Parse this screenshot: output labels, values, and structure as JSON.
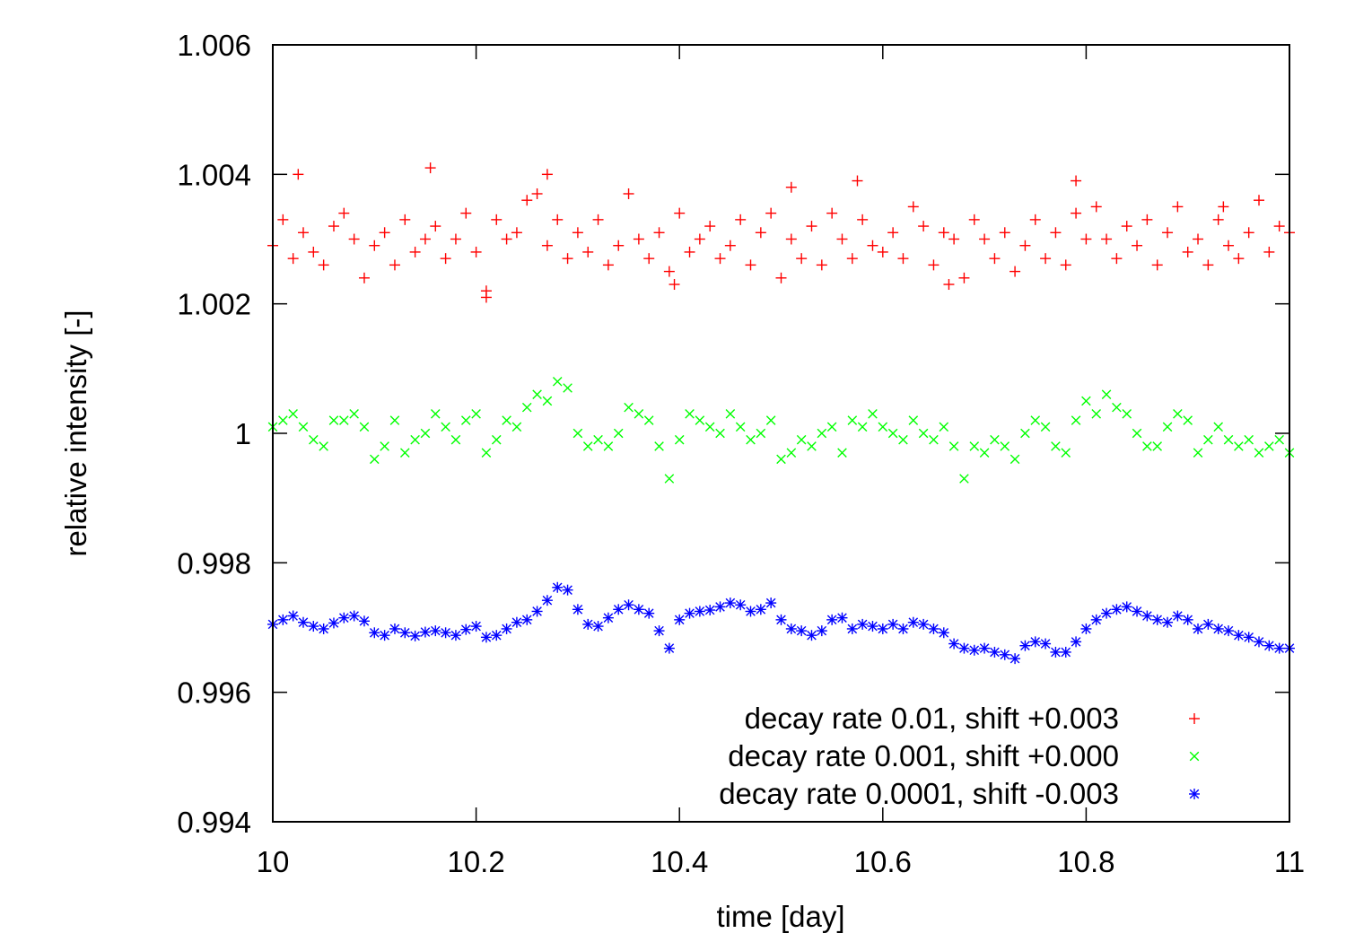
{
  "chart_data": {
    "type": "scatter",
    "title": "",
    "xlabel": "time [day]",
    "ylabel": "relative intensity [-]",
    "xlim": [
      10,
      11
    ],
    "ylim": [
      0.994,
      1.006
    ],
    "xticks": [
      10,
      10.2,
      10.4,
      10.6,
      10.8,
      11
    ],
    "xtick_labels": [
      "10",
      "10.2",
      "10.4",
      "10.6",
      "10.8",
      "11"
    ],
    "yticks": [
      0.994,
      0.996,
      0.998,
      1,
      1.002,
      1.004,
      1.006
    ],
    "ytick_labels": [
      "0.994",
      "0.996",
      "0.998",
      "1",
      "1.002",
      "1.004",
      "1.006"
    ],
    "grid": false,
    "legend_position": "bottom-right",
    "series": [
      {
        "name": "decay rate 0.01, shift +0.003",
        "marker": "plus",
        "color": "#ff0000",
        "x": [
          10.0,
          10.01,
          10.02,
          10.03,
          10.04,
          10.05,
          10.06,
          10.07,
          10.08,
          10.09,
          10.1,
          10.11,
          10.12,
          10.13,
          10.14,
          10.15,
          10.16,
          10.17,
          10.18,
          10.19,
          10.2,
          10.21,
          10.22,
          10.23,
          10.24,
          10.25,
          10.26,
          10.27,
          10.28,
          10.29,
          10.3,
          10.31,
          10.32,
          10.33,
          10.34,
          10.35,
          10.36,
          10.37,
          10.38,
          10.39,
          10.4,
          10.41,
          10.42,
          10.43,
          10.44,
          10.45,
          10.46,
          10.47,
          10.48,
          10.49,
          10.5,
          10.51,
          10.52,
          10.53,
          10.54,
          10.55,
          10.56,
          10.57,
          10.58,
          10.59,
          10.6,
          10.61,
          10.62,
          10.63,
          10.64,
          10.65,
          10.66,
          10.67,
          10.68,
          10.69,
          10.7,
          10.71,
          10.72,
          10.73,
          10.74,
          10.75,
          10.76,
          10.77,
          10.78,
          10.79,
          10.8,
          10.81,
          10.82,
          10.83,
          10.84,
          10.85,
          10.86,
          10.87,
          10.88,
          10.89,
          10.9,
          10.91,
          10.92,
          10.93,
          10.94,
          10.95,
          10.96,
          10.97,
          10.98,
          10.99,
          11.0,
          10.025,
          10.155,
          10.27,
          10.21,
          10.51,
          10.575,
          10.79,
          10.395,
          10.665,
          10.935
        ],
        "y": [
          1.0029,
          1.0033,
          1.0027,
          1.0031,
          1.0028,
          1.0026,
          1.0032,
          1.0034,
          1.003,
          1.0024,
          1.0029,
          1.0031,
          1.0026,
          1.0033,
          1.0028,
          1.003,
          1.0032,
          1.0027,
          1.003,
          1.0034,
          1.0028,
          1.0022,
          1.0033,
          1.003,
          1.0031,
          1.0036,
          1.0037,
          1.0029,
          1.0033,
          1.0027,
          1.0031,
          1.0028,
          1.0033,
          1.0026,
          1.0029,
          1.0037,
          1.003,
          1.0027,
          1.0031,
          1.0025,
          1.0034,
          1.0028,
          1.003,
          1.0032,
          1.0027,
          1.0029,
          1.0033,
          1.0026,
          1.0031,
          1.0034,
          1.0024,
          1.003,
          1.0027,
          1.0032,
          1.0026,
          1.0034,
          1.003,
          1.0027,
          1.0033,
          1.0029,
          1.0028,
          1.0031,
          1.0027,
          1.0035,
          1.0032,
          1.0026,
          1.0031,
          1.003,
          1.0024,
          1.0033,
          1.003,
          1.0027,
          1.0031,
          1.0025,
          1.0029,
          1.0033,
          1.0027,
          1.0031,
          1.0026,
          1.0034,
          1.003,
          1.0035,
          1.003,
          1.0027,
          1.0032,
          1.0029,
          1.0033,
          1.0026,
          1.0031,
          1.0035,
          1.0028,
          1.003,
          1.0026,
          1.0033,
          1.0029,
          1.0027,
          1.0031,
          1.0036,
          1.0028,
          1.0032,
          1.0031,
          1.004,
          1.0041,
          1.004,
          1.0021,
          1.0038,
          1.0039,
          1.0039,
          1.0023,
          1.0023,
          1.0035
        ]
      },
      {
        "name": "decay rate 0.001, shift +0.000",
        "marker": "cross",
        "color": "#00ff00",
        "x": [
          10.0,
          10.01,
          10.02,
          10.03,
          10.04,
          10.05,
          10.06,
          10.07,
          10.08,
          10.09,
          10.1,
          10.11,
          10.12,
          10.13,
          10.14,
          10.15,
          10.16,
          10.17,
          10.18,
          10.19,
          10.2,
          10.21,
          10.22,
          10.23,
          10.24,
          10.25,
          10.26,
          10.27,
          10.28,
          10.29,
          10.3,
          10.31,
          10.32,
          10.33,
          10.34,
          10.35,
          10.36,
          10.37,
          10.38,
          10.39,
          10.4,
          10.41,
          10.42,
          10.43,
          10.44,
          10.45,
          10.46,
          10.47,
          10.48,
          10.49,
          10.5,
          10.51,
          10.52,
          10.53,
          10.54,
          10.55,
          10.56,
          10.57,
          10.58,
          10.59,
          10.6,
          10.61,
          10.62,
          10.63,
          10.64,
          10.65,
          10.66,
          10.67,
          10.68,
          10.69,
          10.7,
          10.71,
          10.72,
          10.73,
          10.74,
          10.75,
          10.76,
          10.77,
          10.78,
          10.79,
          10.8,
          10.81,
          10.82,
          10.83,
          10.84,
          10.85,
          10.86,
          10.87,
          10.88,
          10.89,
          10.9,
          10.91,
          10.92,
          10.93,
          10.94,
          10.95,
          10.96,
          10.97,
          10.98,
          10.99,
          11.0
        ],
        "y": [
          1.0001,
          1.0002,
          1.0003,
          1.0001,
          0.9999,
          0.9998,
          1.0002,
          1.0002,
          1.0003,
          1.0001,
          0.9996,
          0.9998,
          1.0002,
          0.9997,
          0.9999,
          1.0,
          1.0003,
          1.0001,
          0.9999,
          1.0002,
          1.0003,
          0.9997,
          0.9999,
          1.0002,
          1.0001,
          1.0004,
          1.0006,
          1.0005,
          1.0008,
          1.0007,
          1.0,
          0.9998,
          0.9999,
          0.9998,
          1.0,
          1.0004,
          1.0003,
          1.0002,
          0.9998,
          0.9993,
          0.9999,
          1.0003,
          1.0002,
          1.0001,
          1.0,
          1.0003,
          1.0001,
          0.9999,
          1.0,
          1.0002,
          0.9996,
          0.9997,
          0.9999,
          0.9998,
          1.0,
          1.0001,
          0.9997,
          1.0002,
          1.0001,
          1.0003,
          1.0001,
          1.0,
          0.9999,
          1.0002,
          1.0,
          0.9999,
          1.0001,
          0.9998,
          0.9993,
          0.9998,
          0.9997,
          0.9999,
          0.9998,
          0.9996,
          1.0,
          1.0002,
          1.0001,
          0.9998,
          0.9997,
          1.0002,
          1.0005,
          1.0003,
          1.0006,
          1.0004,
          1.0003,
          1.0,
          0.9998,
          0.9998,
          1.0001,
          1.0003,
          1.0002,
          0.9997,
          0.9999,
          1.0001,
          0.9999,
          0.9998,
          0.9999,
          0.9997,
          0.9998,
          0.9999,
          0.9997
        ]
      },
      {
        "name": "decay rate 0.0001, shift -0.003",
        "marker": "star",
        "color": "#0000ff",
        "x": [
          10.0,
          10.01,
          10.02,
          10.03,
          10.04,
          10.05,
          10.06,
          10.07,
          10.08,
          10.09,
          10.1,
          10.11,
          10.12,
          10.13,
          10.14,
          10.15,
          10.16,
          10.17,
          10.18,
          10.19,
          10.2,
          10.21,
          10.22,
          10.23,
          10.24,
          10.25,
          10.26,
          10.27,
          10.28,
          10.29,
          10.3,
          10.31,
          10.32,
          10.33,
          10.34,
          10.35,
          10.36,
          10.37,
          10.38,
          10.39,
          10.4,
          10.41,
          10.42,
          10.43,
          10.44,
          10.45,
          10.46,
          10.47,
          10.48,
          10.49,
          10.5,
          10.51,
          10.52,
          10.53,
          10.54,
          10.55,
          10.56,
          10.57,
          10.58,
          10.59,
          10.6,
          10.61,
          10.62,
          10.63,
          10.64,
          10.65,
          10.66,
          10.67,
          10.68,
          10.69,
          10.7,
          10.71,
          10.72,
          10.73,
          10.74,
          10.75,
          10.76,
          10.77,
          10.78,
          10.79,
          10.8,
          10.81,
          10.82,
          10.83,
          10.84,
          10.85,
          10.86,
          10.87,
          10.88,
          10.89,
          10.9,
          10.91,
          10.92,
          10.93,
          10.94,
          10.95,
          10.96,
          10.97,
          10.98,
          10.99,
          11.0
        ],
        "y": [
          0.99705,
          0.99712,
          0.99718,
          0.99708,
          0.99702,
          0.99698,
          0.99707,
          0.99715,
          0.99718,
          0.9971,
          0.99692,
          0.99688,
          0.99698,
          0.99692,
          0.99687,
          0.99693,
          0.99695,
          0.99692,
          0.99688,
          0.99697,
          0.99702,
          0.99685,
          0.99688,
          0.99698,
          0.99708,
          0.99712,
          0.99725,
          0.99742,
          0.99762,
          0.99758,
          0.99728,
          0.99705,
          0.99702,
          0.99715,
          0.99728,
          0.99735,
          0.99728,
          0.99722,
          0.99695,
          0.99668,
          0.99712,
          0.99722,
          0.99725,
          0.99727,
          0.99732,
          0.99738,
          0.99735,
          0.99725,
          0.99728,
          0.99738,
          0.99712,
          0.99698,
          0.99695,
          0.99688,
          0.99695,
          0.99712,
          0.99715,
          0.99698,
          0.99705,
          0.99702,
          0.99698,
          0.99705,
          0.99698,
          0.99708,
          0.99705,
          0.99698,
          0.99692,
          0.99675,
          0.99668,
          0.99665,
          0.99668,
          0.99662,
          0.99658,
          0.99652,
          0.99672,
          0.99678,
          0.99675,
          0.99662,
          0.99662,
          0.99678,
          0.99698,
          0.99712,
          0.99722,
          0.99728,
          0.99732,
          0.99725,
          0.99718,
          0.99712,
          0.99708,
          0.99718,
          0.99712,
          0.99698,
          0.99705,
          0.99698,
          0.99695,
          0.99688,
          0.99685,
          0.99678,
          0.99672,
          0.99668,
          0.99668
        ]
      }
    ]
  }
}
